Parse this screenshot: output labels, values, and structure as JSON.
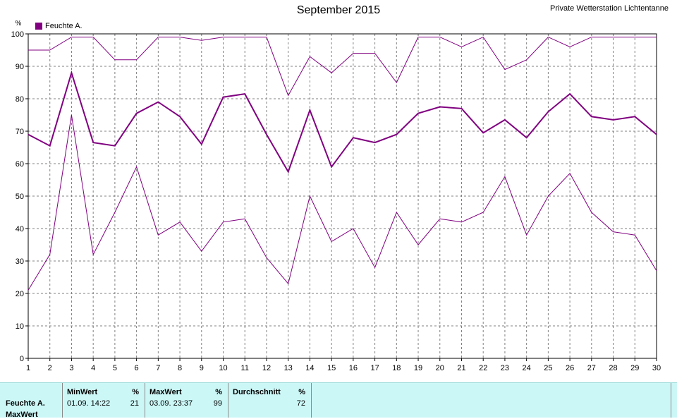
{
  "title": "September 2015",
  "station": "Private Wetterstation Lichtentanne",
  "legend_label": "Feuchte A.",
  "colors": {
    "series": "#800080",
    "grid": "#808080",
    "panel": "#ccf7f7"
  },
  "chart_data": {
    "type": "line",
    "ylabel": "%",
    "ylim": [
      0,
      100
    ],
    "yticks": [
      0,
      10,
      20,
      30,
      40,
      50,
      60,
      70,
      80,
      90,
      100
    ],
    "x": [
      1,
      2,
      3,
      4,
      5,
      6,
      7,
      8,
      9,
      10,
      11,
      12,
      13,
      14,
      15,
      16,
      17,
      18,
      19,
      20,
      21,
      22,
      23,
      24,
      25,
      26,
      27,
      28,
      29,
      30
    ],
    "grid": true,
    "legend": "top-left",
    "series": [
      {
        "name": "Feuchte A.",
        "role": "max",
        "values": [
          95,
          95,
          99,
          99,
          92,
          92,
          99,
          99,
          98,
          99,
          99,
          99,
          81,
          93,
          88,
          94,
          94,
          85,
          99,
          99,
          96,
          99,
          89,
          92,
          99,
          96,
          99,
          99,
          99,
          99
        ]
      },
      {
        "name": "Feuchte A.",
        "role": "avg",
        "values": [
          69,
          65.5,
          88,
          66.5,
          65.5,
          75.5,
          79,
          74.5,
          66,
          80.5,
          81.5,
          69,
          57.5,
          76.5,
          59,
          68,
          66.5,
          69,
          75.5,
          77.5,
          77,
          69.5,
          73.5,
          68,
          76,
          81.5,
          74.5,
          73.5,
          74.5,
          69
        ]
      },
      {
        "name": "Feuchte A.",
        "role": "min",
        "values": [
          21,
          32,
          75,
          32,
          45,
          59,
          38,
          42,
          33,
          42,
          43,
          31,
          23,
          50,
          36,
          40,
          28,
          45,
          35,
          43,
          42,
          45,
          56,
          38,
          50,
          57,
          45,
          39,
          38,
          27
        ]
      }
    ]
  },
  "stats": {
    "row_label": "Feuchte A.",
    "row_label2": "MaxWert",
    "min_header": "MinWert",
    "max_header": "MaxWert",
    "avg_header": "Durchschnitt",
    "unit": "%",
    "min_time": "01.09.  14:22",
    "min_value": "21",
    "max_time": "03.09.  23:37",
    "max_value": "99",
    "avg_value": "72"
  }
}
